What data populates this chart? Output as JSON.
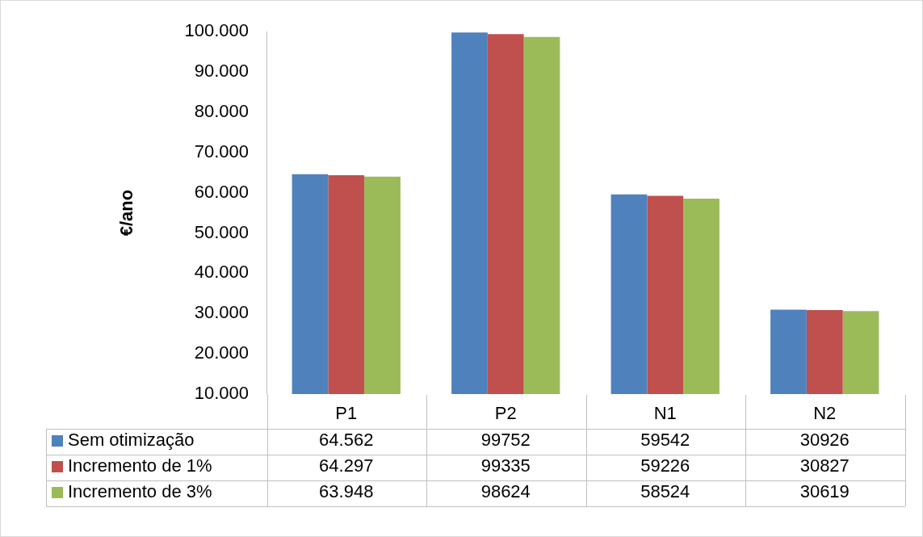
{
  "chart_data": {
    "type": "bar",
    "ylabel": "€/ano",
    "categories": [
      "P1",
      "P2",
      "N1",
      "N2"
    ],
    "series": [
      {
        "name": "Sem otimização",
        "color": "#4f81bd",
        "values": [
          64562,
          99752,
          59542,
          30926
        ],
        "value_labels": [
          "64.562",
          "99752",
          "59542",
          "30926"
        ]
      },
      {
        "name": "Incremento de 1%",
        "color": "#c0504d",
        "values": [
          64297,
          99335,
          59226,
          30827
        ],
        "value_labels": [
          "64.297",
          "99335",
          "59226",
          "30827"
        ]
      },
      {
        "name": "Incremento de 3%",
        "color": "#9bbb59",
        "values": [
          63948,
          98624,
          58524,
          30619
        ],
        "value_labels": [
          "63.948",
          "98624",
          "58524",
          "30619"
        ]
      }
    ],
    "ylim": [
      10000,
      100000
    ],
    "yticks": [
      {
        "value": 10000,
        "label": "10.000"
      },
      {
        "value": 20000,
        "label": "20.000"
      },
      {
        "value": 30000,
        "label": "30.000"
      },
      {
        "value": 40000,
        "label": "40.000"
      },
      {
        "value": 50000,
        "label": "50.000"
      },
      {
        "value": 60000,
        "label": "60.000"
      },
      {
        "value": 70000,
        "label": "70.000"
      },
      {
        "value": 80000,
        "label": "80.000"
      },
      {
        "value": 90000,
        "label": "90.000"
      },
      {
        "value": 100000,
        "label": "100.000"
      }
    ],
    "legend": "bottom",
    "grid": false
  }
}
